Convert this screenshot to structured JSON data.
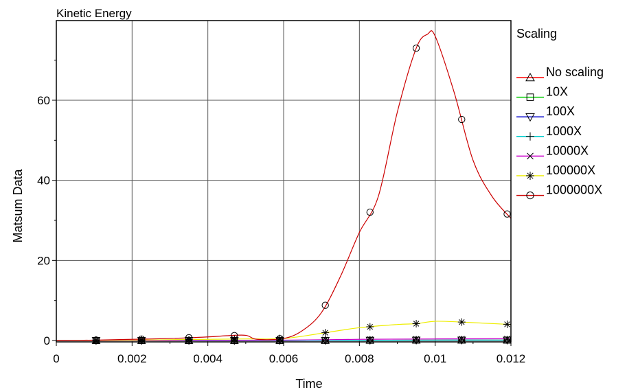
{
  "chart_data": {
    "type": "line",
    "title": "Kinetic Energy",
    "xlabel": "Time",
    "ylabel": "Matsum Data",
    "xlim": [
      0,
      0.012
    ],
    "ylim": [
      -1,
      80
    ],
    "grid": true,
    "x_ticks": [
      {
        "value": 0,
        "label": "0"
      },
      {
        "value": 0.002,
        "label": "0.002"
      },
      {
        "value": 0.004,
        "label": "0.004"
      },
      {
        "value": 0.006,
        "label": "0.006"
      },
      {
        "value": 0.008,
        "label": "0.008"
      },
      {
        "value": 0.01,
        "label": "0.01"
      },
      {
        "value": 0.012,
        "label": "0.012"
      }
    ],
    "y_ticks": [
      {
        "value": 0,
        "label": "0"
      },
      {
        "value": 20,
        "label": "20"
      },
      {
        "value": 40,
        "label": "40"
      },
      {
        "value": 60,
        "label": "60"
      }
    ],
    "legend": {
      "title": "Scaling",
      "placement": "right"
    },
    "series": [
      {
        "name": "No scaling",
        "color": "#ff0000",
        "marker": "triangle-up",
        "points": [
          [
            0,
            0
          ],
          [
            0.002,
            0
          ],
          [
            0.004,
            0
          ],
          [
            0.006,
            0
          ],
          [
            0.008,
            0.05
          ],
          [
            0.01,
            0.1
          ],
          [
            0.012,
            0.1
          ]
        ],
        "marker_x": [
          0.00105,
          0.00225,
          0.0035,
          0.0047,
          0.0059,
          0.0071,
          0.00828,
          0.0095,
          0.0107,
          0.0119
        ]
      },
      {
        "name": "10X",
        "color": "#00cc00",
        "marker": "square",
        "points": [
          [
            0,
            0
          ],
          [
            0.002,
            0
          ],
          [
            0.004,
            0
          ],
          [
            0.006,
            0
          ],
          [
            0.008,
            0.05
          ],
          [
            0.01,
            0.1
          ],
          [
            0.012,
            0.1
          ]
        ],
        "marker_x": [
          0.00105,
          0.00225,
          0.0035,
          0.0047,
          0.0059,
          0.0071,
          0.00828,
          0.0095,
          0.0107,
          0.0119
        ]
      },
      {
        "name": "100X",
        "color": "#0000cc",
        "marker": "triangle-down",
        "points": [
          [
            0,
            0
          ],
          [
            0.002,
            0
          ],
          [
            0.004,
            0
          ],
          [
            0.006,
            0
          ],
          [
            0.008,
            0.05
          ],
          [
            0.01,
            0.1
          ],
          [
            0.012,
            0.1
          ]
        ],
        "marker_x": [
          0.00105,
          0.00225,
          0.0035,
          0.0047,
          0.0059,
          0.0071,
          0.00828,
          0.0095,
          0.0107,
          0.0119
        ]
      },
      {
        "name": "1000X",
        "color": "#00cccc",
        "marker": "plus",
        "points": [
          [
            0,
            0
          ],
          [
            0.002,
            0
          ],
          [
            0.004,
            0
          ],
          [
            0.006,
            0
          ],
          [
            0.008,
            0.05
          ],
          [
            0.01,
            0.1
          ],
          [
            0.012,
            0.1
          ]
        ],
        "marker_x": [
          0.00105,
          0.00225,
          0.0035,
          0.0047,
          0.0059,
          0.0071,
          0.00828,
          0.0095,
          0.0107,
          0.0119
        ]
      },
      {
        "name": "10000X",
        "color": "#cc00cc",
        "marker": "cross",
        "points": [
          [
            0,
            0
          ],
          [
            0.002,
            0
          ],
          [
            0.004,
            0.05
          ],
          [
            0.006,
            0.1
          ],
          [
            0.008,
            0.3
          ],
          [
            0.01,
            0.4
          ],
          [
            0.012,
            0.45
          ]
        ],
        "marker_x": [
          0.00105,
          0.00225,
          0.0035,
          0.0047,
          0.0059,
          0.0071,
          0.00828,
          0.0095,
          0.0107,
          0.0119
        ]
      },
      {
        "name": "100000X",
        "color": "#eeee00",
        "marker": "asterisk",
        "points": [
          [
            0,
            0
          ],
          [
            0.001,
            0.05
          ],
          [
            0.002,
            0.1
          ],
          [
            0.003,
            0.2
          ],
          [
            0.004,
            0.3
          ],
          [
            0.005,
            0.4
          ],
          [
            0.006,
            0.5
          ],
          [
            0.007,
            1.8
          ],
          [
            0.008,
            3.2
          ],
          [
            0.009,
            4.0
          ],
          [
            0.0095,
            4.2
          ],
          [
            0.01,
            4.8
          ],
          [
            0.0107,
            4.6
          ],
          [
            0.012,
            4.0
          ]
        ],
        "marker_x": [
          0.00105,
          0.00225,
          0.0035,
          0.0047,
          0.0059,
          0.0071,
          0.00828,
          0.0095,
          0.0107,
          0.0119
        ]
      },
      {
        "name": "1000000X",
        "color": "#cc0000",
        "marker": "circle",
        "points": [
          [
            0,
            0
          ],
          [
            0.001,
            0.1
          ],
          [
            0.002,
            0.3
          ],
          [
            0.003,
            0.5
          ],
          [
            0.004,
            0.9
          ],
          [
            0.0045,
            1.2
          ],
          [
            0.005,
            1.3
          ],
          [
            0.0053,
            0.3
          ],
          [
            0.006,
            0.5
          ],
          [
            0.0065,
            2.5
          ],
          [
            0.007,
            7.0
          ],
          [
            0.0075,
            16
          ],
          [
            0.008,
            27
          ],
          [
            0.0085,
            36
          ],
          [
            0.009,
            57
          ],
          [
            0.0095,
            73
          ],
          [
            0.0098,
            76.5
          ],
          [
            0.01,
            76
          ],
          [
            0.0105,
            62
          ],
          [
            0.011,
            45
          ],
          [
            0.0115,
            36
          ],
          [
            0.012,
            30.5
          ]
        ],
        "marker_x": [
          0.00105,
          0.00225,
          0.0035,
          0.0047,
          0.0059,
          0.0071,
          0.00828,
          0.0095,
          0.0107,
          0.0119
        ]
      }
    ]
  }
}
